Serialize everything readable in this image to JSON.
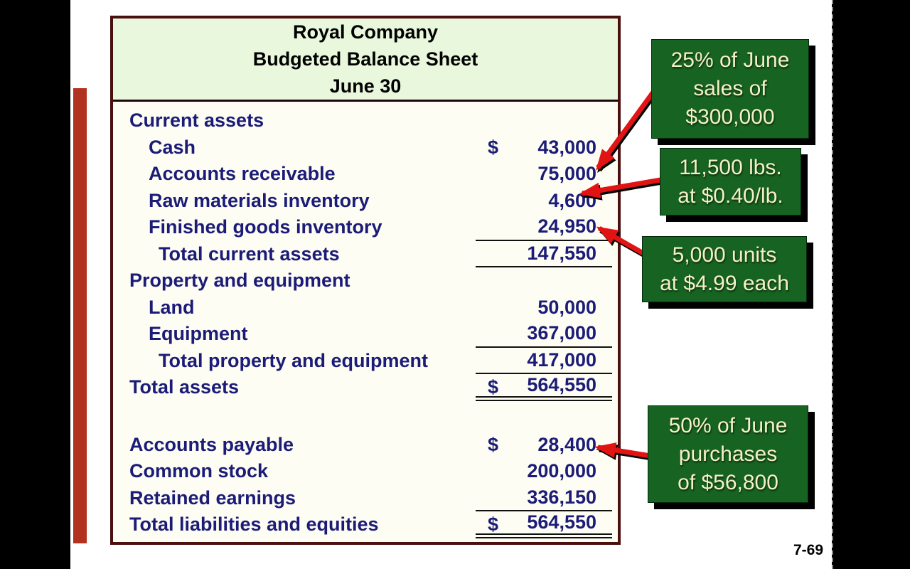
{
  "slide": {
    "page_number": "7-69",
    "colors": {
      "table_border_maroon": "#4a0f0f",
      "header_green": "#e9f7dc",
      "body_cream": "#fdfdf3",
      "text_navy": "#1c1c78",
      "callout_green": "#176321",
      "callout_text_cream": "#f4f1c6",
      "arrow_red": "#e21313",
      "accent_bar_red": "#b23220"
    }
  },
  "balance_sheet": {
    "title_lines": [
      "Royal Company",
      "Budgeted Balance Sheet",
      "June 30"
    ],
    "rows": [
      {
        "label": "Current assets",
        "indent": 0,
        "currency": "",
        "amount": "",
        "rule": "none"
      },
      {
        "label": "Cash",
        "indent": 1,
        "currency": "$",
        "amount": "43,000",
        "rule": "none"
      },
      {
        "label": "Accounts receivable",
        "indent": 1,
        "currency": "",
        "amount": "75,000",
        "rule": "none"
      },
      {
        "label": "Raw materials inventory",
        "indent": 1,
        "currency": "",
        "amount": "4,600",
        "rule": "none"
      },
      {
        "label": "Finished goods inventory",
        "indent": 1,
        "currency": "",
        "amount": "24,950",
        "rule": "single"
      },
      {
        "label": "Total current assets",
        "indent": 2,
        "currency": "",
        "amount": "147,550",
        "rule": "single"
      },
      {
        "label": "Property and equipment",
        "indent": 0,
        "currency": "",
        "amount": "",
        "rule": "none"
      },
      {
        "label": "Land",
        "indent": 1,
        "currency": "",
        "amount": "50,000",
        "rule": "none"
      },
      {
        "label": "Equipment",
        "indent": 1,
        "currency": "",
        "amount": "367,000",
        "rule": "single"
      },
      {
        "label": "Total property and equipment",
        "indent": 2,
        "currency": "",
        "amount": "417,000",
        "rule": "single"
      },
      {
        "label": "Total assets",
        "indent": 0,
        "currency": "$",
        "amount": "564,550",
        "rule": "double"
      },
      {
        "type": "spacer"
      },
      {
        "label": "Accounts payable",
        "indent": 0,
        "currency": "$",
        "amount": "28,400",
        "rule": "none"
      },
      {
        "label": "Common stock",
        "indent": 0,
        "currency": "",
        "amount": "200,000",
        "rule": "none"
      },
      {
        "label": "Retained earnings",
        "indent": 0,
        "currency": "",
        "amount": "336,150",
        "rule": "single"
      },
      {
        "label": "Total liabilities and equities",
        "indent": 0,
        "currency": "$",
        "amount": "564,550",
        "rule": "double"
      }
    ]
  },
  "callouts": [
    {
      "lines": [
        "25% of June",
        "sales of",
        "$300,000"
      ]
    },
    {
      "lines": [
        "11,500 lbs.",
        "at $0.40/lb."
      ]
    },
    {
      "lines": [
        "5,000 units",
        "at $4.99 each"
      ]
    },
    {
      "lines": [
        "50% of June",
        "purchases",
        "of $56,800"
      ]
    }
  ]
}
